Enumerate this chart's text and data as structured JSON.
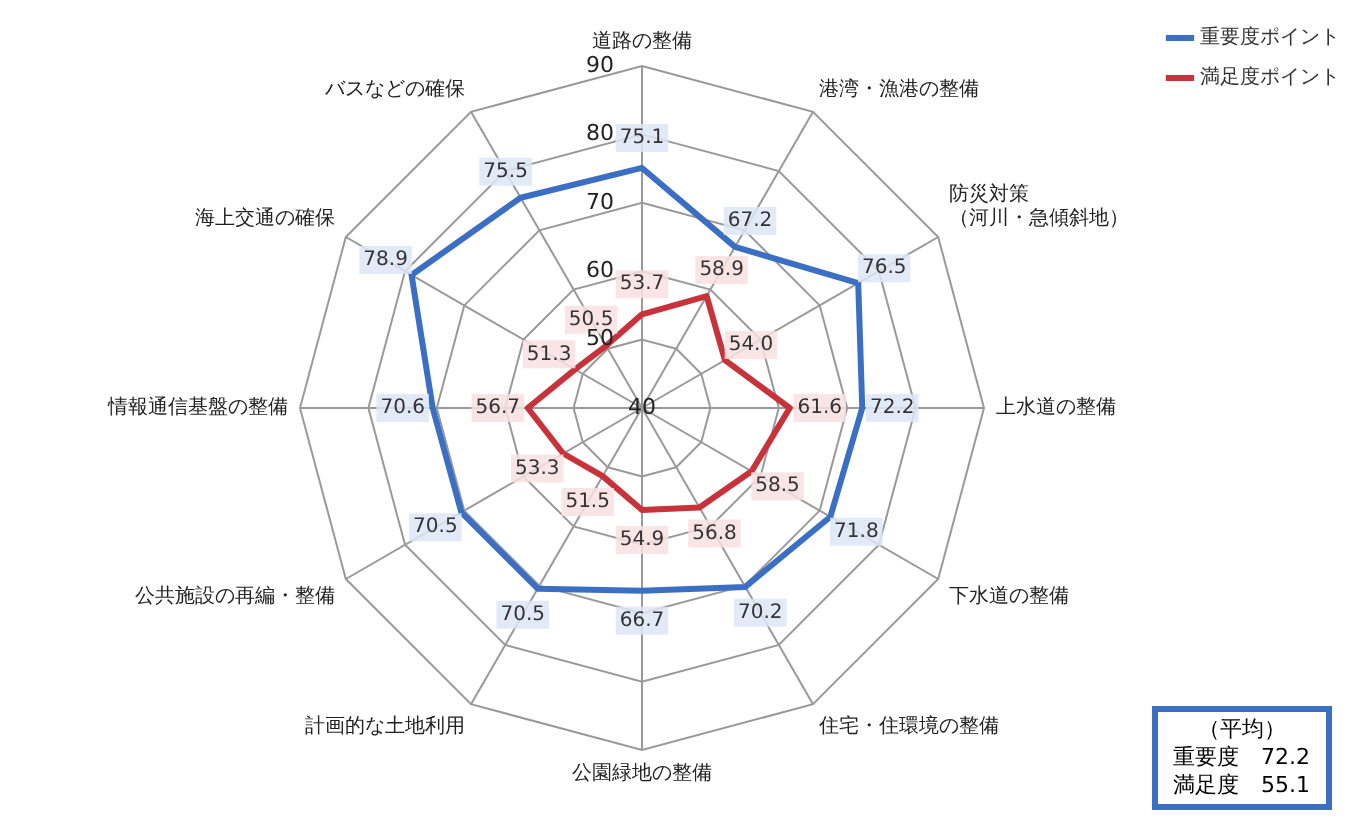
{
  "chart_data": {
    "type": "radar",
    "categories": [
      "道路の整備",
      "港湾・漁港の整備",
      "防災対策（河川・急傾斜地）",
      "上水道の整備",
      "下水道の整備",
      "住宅・住環境の整備",
      "公園緑地の整備",
      "計画的な土地利用",
      "公共施設の再編・整備",
      "情報通信基盤の整備",
      "海上交通の確保",
      "バスなどの確保"
    ],
    "series": [
      {
        "name": "重要度ポイント",
        "color": "#3b6fc4",
        "values": [
          75.1,
          67.2,
          76.5,
          72.2,
          71.8,
          70.2,
          66.7,
          70.5,
          70.5,
          70.6,
          78.9,
          75.5
        ],
        "value_labels": [
          "75.1",
          "67.2",
          "76.5",
          "72.2",
          "71.8",
          "70.2",
          "66.7",
          "70.5",
          "70.5",
          "70.6",
          "78.9",
          "75.5"
        ]
      },
      {
        "name": "満足度ポイント",
        "color": "#c8333b",
        "values": [
          53.7,
          58.9,
          54.0,
          61.6,
          58.5,
          56.8,
          54.9,
          51.5,
          53.3,
          56.7,
          51.3,
          50.5
        ],
        "value_labels": [
          "53.7",
          "58.9",
          "54.0",
          "61.6",
          "58.5",
          "56.8",
          "54.9",
          "51.5",
          "53.3",
          "56.7",
          "51.3",
          "50.5"
        ]
      }
    ],
    "ylim": [
      40,
      90
    ],
    "yticks": [
      40,
      50,
      60,
      70,
      80,
      90
    ],
    "grid": true,
    "legend": "top right",
    "marker": "none",
    "line_style": "solid",
    "annotations": [
      "（平均）",
      "重要度　72.2",
      "満足度　55.1"
    ]
  }
}
